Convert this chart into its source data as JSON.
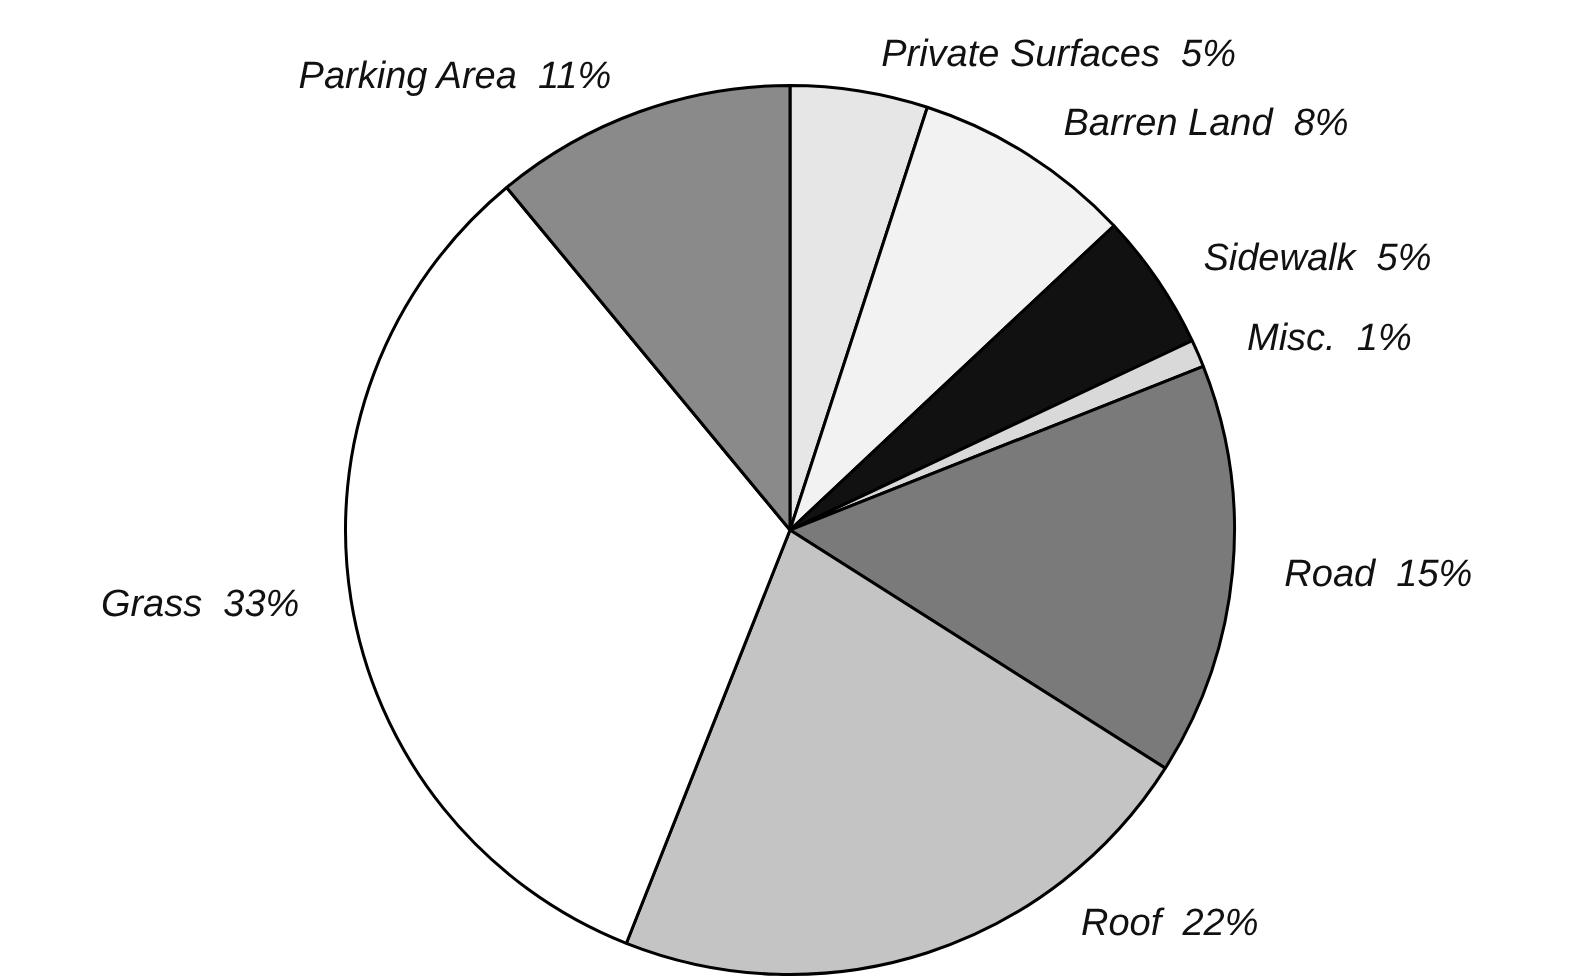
{
  "chart_data": {
    "type": "pie",
    "categories": [
      "Private Surfaces",
      "Barren Land",
      "Sidewalk",
      "Misc.",
      "Road",
      "Roof",
      "Grass",
      "Parking Area"
    ],
    "values": [
      5,
      8,
      5,
      1,
      15,
      22,
      33,
      11
    ],
    "value_labels": [
      "5%",
      "8%",
      "5%",
      "1%",
      "15%",
      "22%",
      "33%",
      "11%"
    ],
    "colors": [
      "#e6e6e6",
      "#f2f2f2",
      "#111111",
      "#d9d9d9",
      "#7a7a7a",
      "#c4c4c4",
      "#ffffff",
      "#8a8a8a"
    ],
    "legend": false
  }
}
